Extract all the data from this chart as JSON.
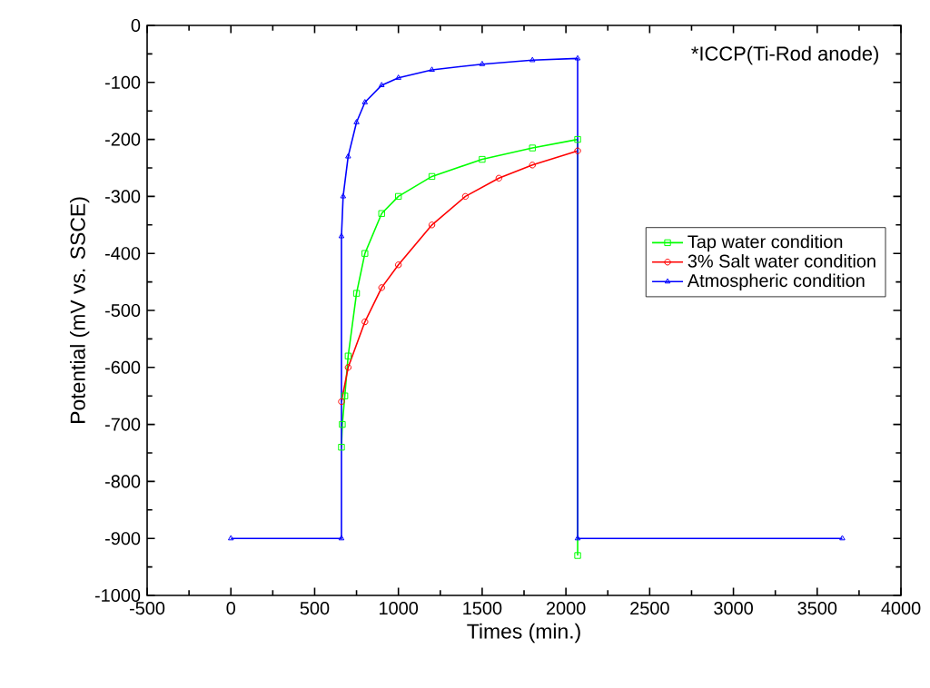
{
  "chart_data": {
    "type": "line",
    "xlabel": "Times (min.)",
    "ylabel": "Potential (mV vs. SSCE)",
    "annotations": [
      "*ICCP(Ti-Rod anode)"
    ],
    "xlim": [
      -500,
      4000
    ],
    "xticks": [
      -500,
      0,
      500,
      1000,
      1500,
      2000,
      2500,
      3000,
      3500,
      4000
    ],
    "ylim": [
      -1000,
      0
    ],
    "yticks": [
      -1000,
      -900,
      -800,
      -700,
      -600,
      -500,
      -400,
      -300,
      -200,
      -100,
      0
    ],
    "grid": false,
    "legend": "right",
    "series": [
      {
        "name": "Tap water condition",
        "color": "#00ff00",
        "marker": "square",
        "x": [
          660,
          665,
          680,
          700,
          750,
          800,
          900,
          1000,
          1200,
          1500,
          1800,
          2070,
          2070
        ],
        "values": [
          -740,
          -700,
          -650,
          -580,
          -470,
          -400,
          -330,
          -300,
          -265,
          -235,
          -215,
          -200,
          -930
        ]
      },
      {
        "name": "3% Salt water condition",
        "color": "#ff0000",
        "marker": "circle",
        "x": [
          660,
          700,
          800,
          900,
          1000,
          1200,
          1400,
          1600,
          1800,
          2070
        ],
        "values": [
          -660,
          -600,
          -520,
          -460,
          -420,
          -350,
          -300,
          -268,
          -245,
          -220
        ]
      },
      {
        "name": "Atmospheric condition",
        "color": "#0000ff",
        "marker": "triangle",
        "x": [
          0,
          660,
          660,
          670,
          700,
          750,
          800,
          900,
          1000,
          1200,
          1500,
          1800,
          2070,
          2070,
          3650
        ],
        "values": [
          -900,
          -900,
          -370,
          -300,
          -230,
          -170,
          -135,
          -105,
          -92,
          -78,
          -68,
          -61,
          -58,
          -900,
          -900
        ]
      }
    ]
  }
}
